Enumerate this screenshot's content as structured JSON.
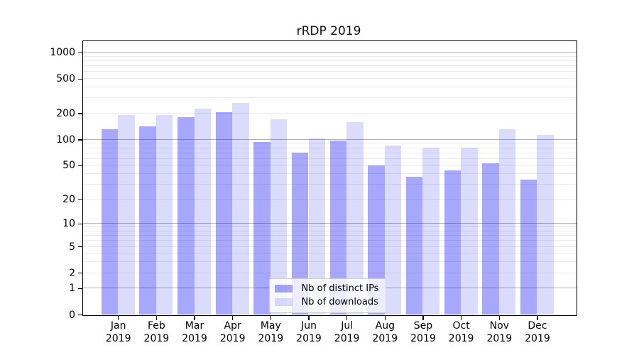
{
  "title": "rRDP 2019",
  "chart_data": {
    "type": "bar",
    "title": "rRDP 2019",
    "categories": [
      "Jan 2019",
      "Feb 2019",
      "Mar 2019",
      "Apr 2019",
      "May 2019",
      "Jun 2019",
      "Jul 2019",
      "Aug 2019",
      "Sep 2019",
      "Oct 2019",
      "Nov 2019",
      "Dec 2019"
    ],
    "series": [
      {
        "name": "Nb of distinct IPs",
        "color": "rgba(0,0,245,0.345)",
        "values": [
          130,
          141,
          182,
          205,
          93,
          70,
          97,
          50,
          37,
          44,
          53,
          34
        ]
      },
      {
        "name": "Nb of downloads",
        "color": "rgba(0,0,245,0.14)",
        "values": [
          190,
          190,
          228,
          264,
          172,
          103,
          158,
          85,
          80,
          80,
          130,
          112
        ]
      }
    ],
    "y_ticks": [
      0,
      1,
      2,
      5,
      10,
      20,
      50,
      100,
      200,
      500,
      1000
    ],
    "y_major_gridlines": [
      1,
      10,
      100,
      1000
    ],
    "y_scale": "symlog-log1p",
    "ylim": [
      0,
      1350
    ],
    "xlabel": "",
    "ylabel": "",
    "grid": true,
    "legend_position": "lower center"
  },
  "colors": {
    "bar_distinct_ips_on_white": "#a7a7fa",
    "bar_downloads_on_white": "#dbdbfa",
    "major_gridline": "#b3b3b3",
    "minor_gridline": "#ebebeb",
    "axis_spine": "#000000",
    "background": "#ffffff"
  }
}
